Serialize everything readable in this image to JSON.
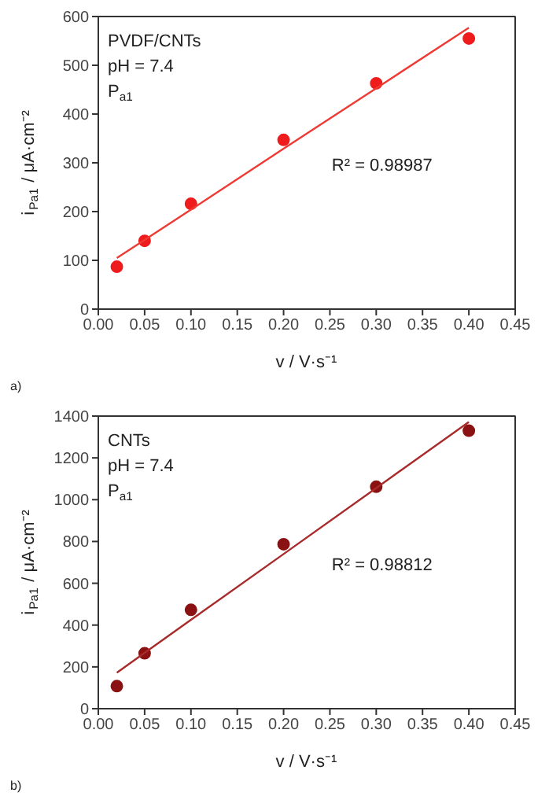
{
  "chart_data": [
    {
      "type": "scatter",
      "xlabel": "v / V·s⁻¹",
      "ylabel": "i$_{Pa1}$ / μA·cm⁻²",
      "x": [
        0.02,
        0.05,
        0.1,
        0.2,
        0.3,
        0.4
      ],
      "xlim": [
        0,
        0.45
      ],
      "xticks": [
        {
          "value": 0,
          "label": "0.00"
        },
        0.05,
        {
          "value": 0.1,
          "label": "0.10"
        },
        0.15,
        {
          "value": 0.2,
          "label": "0.20"
        },
        0.25,
        {
          "value": 0.3,
          "label": "0.30"
        },
        0.35,
        {
          "value": 0.4,
          "label": "0.40"
        },
        0.45
      ],
      "ylim": [
        0,
        600
      ],
      "yticks": [
        0,
        100,
        200,
        300,
        400,
        500,
        600
      ],
      "grid": false,
      "series": [
        {
          "marker": "circle",
          "color": "#ee1c1c",
          "values": [
            87,
            140,
            216,
            347,
            463,
            555
          ]
        },
        {
          "type": "line",
          "color": "#ee3a33",
          "values": [
            105,
            142,
            204,
            329,
            453,
            577
          ]
        }
      ],
      "annotations": [
        "PVDF/CNTs",
        "pH = 7.4",
        "P$_{a1}$",
        "R² = 0.98987",
        "a)"
      ]
    },
    {
      "type": "scatter",
      "xlabel": "v / V·s⁻¹",
      "ylabel": "i$_{Pa1}$ / μA·cm⁻²",
      "x": [
        0.02,
        0.05,
        0.1,
        0.2,
        0.3,
        0.4
      ],
      "xlim": [
        0,
        0.45
      ],
      "xticks": [
        {
          "value": 0,
          "label": "0.00"
        },
        0.05,
        {
          "value": 0.1,
          "label": "0.10"
        },
        0.15,
        {
          "value": 0.2,
          "label": "0.20"
        },
        0.25,
        {
          "value": 0.3,
          "label": "0.30"
        },
        0.35,
        {
          "value": 0.4,
          "label": "0.40"
        },
        0.45
      ],
      "ylim": [
        0,
        1400
      ],
      "yticks": [
        0,
        200,
        400,
        600,
        800,
        1000,
        1200,
        1400
      ],
      "grid": false,
      "series": [
        {
          "marker": "circle",
          "color": "#8b1212",
          "values": [
            108,
            265,
            473,
            787,
            1062,
            1330
          ]
        },
        {
          "type": "line",
          "color": "#a82a2a",
          "values": [
            172,
            267,
            425,
            740,
            1056,
            1372
          ]
        }
      ],
      "annotations": [
        "CNTs",
        "pH = 7.4",
        "P$_{a1}$",
        "R² = 0.98812",
        "b)"
      ]
    }
  ]
}
